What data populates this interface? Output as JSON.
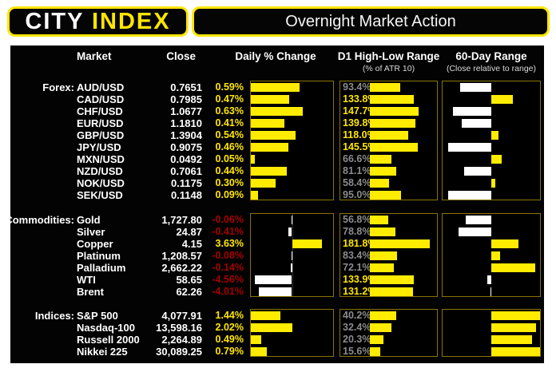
{
  "brand": {
    "city": "CITY",
    "index": "INDEX"
  },
  "title": "Overnight Market Action",
  "columns": {
    "market": "Market",
    "close": "Close",
    "daily": "Daily % Change",
    "d1": "D1 High-Low Range",
    "d1_sub": "(% of ATR 10)",
    "r60": "60-Day Range",
    "r60_sub": "(Close relative to range)"
  },
  "colors": {
    "brand_yellow": "#ffe600",
    "bar_yellow": "#ffec00",
    "bar_white": "#ffffff",
    "negative_red": "#a40000",
    "muted_gray": "#8c8c8c",
    "box_border": "#8a7400",
    "panel_black": "#030303",
    "text_white": "#ffffff"
  },
  "chart_data": {
    "type": "table",
    "title": "Overnight Market Action",
    "column_headers": [
      "Market",
      "Close",
      "Daily % Change",
      "D1 High-Low Range (% of ATR 10)",
      "60-Day Range (Close relative to range)"
    ],
    "legend": {
      "daily_bar": "horizontal bar of daily % change; negative bars drawn white extending left of a center zero axis, positive bars yellow",
      "d1_bar": "yellow bar of D1 high-low range as % of ATR10; label gray below 100%, yellow at/above 100%",
      "range60_bar": "bar from midpoint of 60-day range to close position; yellow = close in upper half, white = lower half"
    },
    "sections": [
      {
        "label": "Forex:",
        "daily_axis": {
          "min": 0,
          "max": 1.0,
          "zero": "left"
        },
        "d1_axis": {
          "min": 0,
          "max": 200
        },
        "rows": [
          {
            "market": "AUD/USD",
            "close": "0.7651",
            "daily_pct": 0.59,
            "d1_pct": 93.4,
            "r60_pos": 0.18
          },
          {
            "market": "CAD/USD",
            "close": "0.7985",
            "daily_pct": 0.47,
            "d1_pct": 133.8,
            "r60_pos": 0.72
          },
          {
            "market": "CHF/USD",
            "close": "1.0677",
            "daily_pct": 0.63,
            "d1_pct": 147.7,
            "r60_pos": 0.11
          },
          {
            "market": "EUR/USD",
            "close": "1.1810",
            "daily_pct": 0.41,
            "d1_pct": 139.8,
            "r60_pos": 0.2
          },
          {
            "market": "GBP/USD",
            "close": "1.3904",
            "daily_pct": 0.54,
            "d1_pct": 118.0,
            "r60_pos": 0.57
          },
          {
            "market": "JPY/USD",
            "close": "0.9075",
            "daily_pct": 0.46,
            "d1_pct": 145.5,
            "r60_pos": 0.06
          },
          {
            "market": "MXN/USD",
            "close": "0.0492",
            "daily_pct": 0.05,
            "d1_pct": 66.6,
            "r60_pos": 0.61
          },
          {
            "market": "NZD/USD",
            "close": "0.7061",
            "daily_pct": 0.44,
            "d1_pct": 81.1,
            "r60_pos": 0.22
          },
          {
            "market": "NOK/USD",
            "close": "0.1175",
            "daily_pct": 0.3,
            "d1_pct": 58.4,
            "r60_pos": 0.54
          },
          {
            "market": "SEK/USD",
            "close": "0.1148",
            "daily_pct": 0.09,
            "d1_pct": 95.0,
            "r60_pos": 0.06
          }
        ]
      },
      {
        "label": "Commodities:",
        "daily_axis": {
          "min": -5.0,
          "max": 5.0,
          "zero": "center"
        },
        "d1_axis": {
          "min": 0,
          "max": 200
        },
        "rows": [
          {
            "market": "Gold",
            "close": "1,727.80",
            "daily_pct": -0.06,
            "d1_pct": 56.8,
            "r60_pos": 0.24
          },
          {
            "market": "Silver",
            "close": "24.87",
            "daily_pct": -0.41,
            "d1_pct": 78.8,
            "r60_pos": 0.16
          },
          {
            "market": "Copper",
            "close": "4.15",
            "daily_pct": 3.63,
            "d1_pct": 181.8,
            "r60_pos": 0.78
          },
          {
            "market": "Platinum",
            "close": "1,208.57",
            "daily_pct": -0.08,
            "d1_pct": 83.4,
            "r60_pos": 0.59
          },
          {
            "market": "Palladium",
            "close": "2,662.22",
            "daily_pct": -0.14,
            "d1_pct": 72.1,
            "r60_pos": 0.95
          },
          {
            "market": "WTI",
            "close": "58.65",
            "daily_pct": -4.56,
            "d1_pct": 133.9,
            "r60_pos": 0.46
          },
          {
            "market": "Brent",
            "close": "62.26",
            "daily_pct": -4.01,
            "d1_pct": 131.2,
            "r60_pos": 0.49
          }
        ]
      },
      {
        "label": "Indices:",
        "daily_axis": {
          "min": 0,
          "max": 4.0,
          "zero": "left"
        },
        "d1_axis": {
          "min": 0,
          "max": 100
        },
        "rows": [
          {
            "market": "S&P 500",
            "close": "4,077.91",
            "daily_pct": 1.44,
            "d1_pct": 40.2,
            "r60_pos": 1.0
          },
          {
            "market": "Nasdaq-100",
            "close": "13,598.16",
            "daily_pct": 2.02,
            "d1_pct": 32.4,
            "r60_pos": 0.96
          },
          {
            "market": "Russell 2000",
            "close": "2,264.89",
            "daily_pct": 0.49,
            "d1_pct": 20.3,
            "r60_pos": 0.92
          },
          {
            "market": "Nikkei 225",
            "close": "30,089.25",
            "daily_pct": 0.79,
            "d1_pct": 15.6,
            "r60_pos": 1.0
          }
        ]
      }
    ]
  }
}
